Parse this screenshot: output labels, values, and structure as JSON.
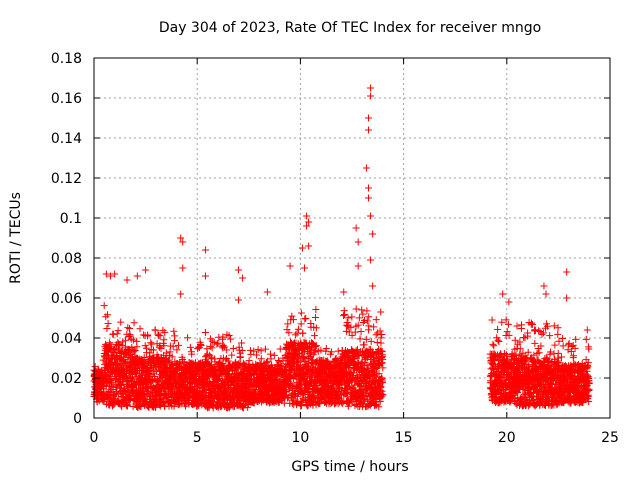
{
  "chart_data": {
    "type": "scatter",
    "title": "Day 304 of 2023, Rate Of TEC Index for receiver mngo",
    "xlabel": "GPS time / hours",
    "ylabel": "ROTI / TECUs",
    "xlim": [
      0,
      25
    ],
    "ylim": [
      0,
      0.18
    ],
    "xticks": [
      0,
      5,
      10,
      15,
      20,
      25
    ],
    "yticks": [
      0,
      0.02,
      0.04,
      0.06,
      0.08,
      0.1,
      0.12,
      0.14,
      0.16,
      0.18
    ],
    "xtick_labels": [
      "0",
      "5",
      "10",
      "15",
      "20",
      "25"
    ],
    "ytick_labels": [
      "0",
      "0.02",
      "0.04",
      "0.06",
      "0.08",
      "0.1",
      "0.12",
      "0.14",
      "0.16",
      "0.18"
    ],
    "grid": true,
    "marker": "+",
    "color": "#ff0000",
    "data_coverage_hours": [
      [
        0,
        14
      ],
      [
        19.2,
        24
      ]
    ],
    "notable_points": [
      {
        "x": 0.6,
        "y": 0.072
      },
      {
        "x": 0.8,
        "y": 0.071
      },
      {
        "x": 1.0,
        "y": 0.072
      },
      {
        "x": 1.6,
        "y": 0.069
      },
      {
        "x": 2.1,
        "y": 0.071
      },
      {
        "x": 2.5,
        "y": 0.074
      },
      {
        "x": 4.2,
        "y": 0.09
      },
      {
        "x": 4.3,
        "y": 0.088
      },
      {
        "x": 4.3,
        "y": 0.075
      },
      {
        "x": 4.2,
        "y": 0.062
      },
      {
        "x": 5.4,
        "y": 0.084
      },
      {
        "x": 5.4,
        "y": 0.071
      },
      {
        "x": 7.0,
        "y": 0.074
      },
      {
        "x": 7.2,
        "y": 0.07
      },
      {
        "x": 7.0,
        "y": 0.059
      },
      {
        "x": 8.4,
        "y": 0.063
      },
      {
        "x": 9.5,
        "y": 0.076
      },
      {
        "x": 10.1,
        "y": 0.085
      },
      {
        "x": 10.3,
        "y": 0.101
      },
      {
        "x": 10.4,
        "y": 0.098
      },
      {
        "x": 10.3,
        "y": 0.096
      },
      {
        "x": 10.4,
        "y": 0.086
      },
      {
        "x": 10.2,
        "y": 0.075
      },
      {
        "x": 12.1,
        "y": 0.063
      },
      {
        "x": 12.7,
        "y": 0.095
      },
      {
        "x": 12.8,
        "y": 0.088
      },
      {
        "x": 12.8,
        "y": 0.076
      },
      {
        "x": 13.2,
        "y": 0.125
      },
      {
        "x": 13.3,
        "y": 0.144
      },
      {
        "x": 13.3,
        "y": 0.15
      },
      {
        "x": 13.4,
        "y": 0.161
      },
      {
        "x": 13.4,
        "y": 0.165
      },
      {
        "x": 13.3,
        "y": 0.115
      },
      {
        "x": 13.3,
        "y": 0.11
      },
      {
        "x": 13.4,
        "y": 0.101
      },
      {
        "x": 13.5,
        "y": 0.092
      },
      {
        "x": 13.4,
        "y": 0.079
      },
      {
        "x": 13.5,
        "y": 0.066
      },
      {
        "x": 19.8,
        "y": 0.062
      },
      {
        "x": 20.1,
        "y": 0.058
      },
      {
        "x": 21.8,
        "y": 0.066
      },
      {
        "x": 21.9,
        "y": 0.062
      },
      {
        "x": 22.9,
        "y": 0.073
      },
      {
        "x": 22.9,
        "y": 0.06
      },
      {
        "x": 23.9,
        "y": 0.044
      }
    ],
    "segments": [
      {
        "start": 0.0,
        "end": 0.5,
        "base": 0.016,
        "spread": 0.01,
        "peak": 0.03
      },
      {
        "start": 0.5,
        "end": 1.2,
        "base": 0.022,
        "spread": 0.02,
        "peak": 0.06
      },
      {
        "start": 1.2,
        "end": 2.0,
        "base": 0.02,
        "spread": 0.018,
        "peak": 0.05
      },
      {
        "start": 2.0,
        "end": 3.5,
        "base": 0.018,
        "spread": 0.016,
        "peak": 0.045
      },
      {
        "start": 3.5,
        "end": 5.5,
        "base": 0.017,
        "spread": 0.014,
        "peak": 0.045
      },
      {
        "start": 5.5,
        "end": 7.5,
        "base": 0.016,
        "spread": 0.014,
        "peak": 0.042
      },
      {
        "start": 7.5,
        "end": 9.3,
        "base": 0.017,
        "spread": 0.012,
        "peak": 0.035
      },
      {
        "start": 9.3,
        "end": 10.8,
        "base": 0.022,
        "spread": 0.02,
        "peak": 0.055
      },
      {
        "start": 10.8,
        "end": 12.0,
        "base": 0.018,
        "spread": 0.014,
        "peak": 0.035
      },
      {
        "start": 12.0,
        "end": 14.0,
        "base": 0.02,
        "spread": 0.018,
        "peak": 0.055
      },
      {
        "start": 19.2,
        "end": 20.5,
        "base": 0.02,
        "spread": 0.016,
        "peak": 0.05
      },
      {
        "start": 20.5,
        "end": 22.5,
        "base": 0.018,
        "spread": 0.015,
        "peak": 0.048
      },
      {
        "start": 22.5,
        "end": 24.0,
        "base": 0.017,
        "spread": 0.012,
        "peak": 0.04
      }
    ]
  }
}
